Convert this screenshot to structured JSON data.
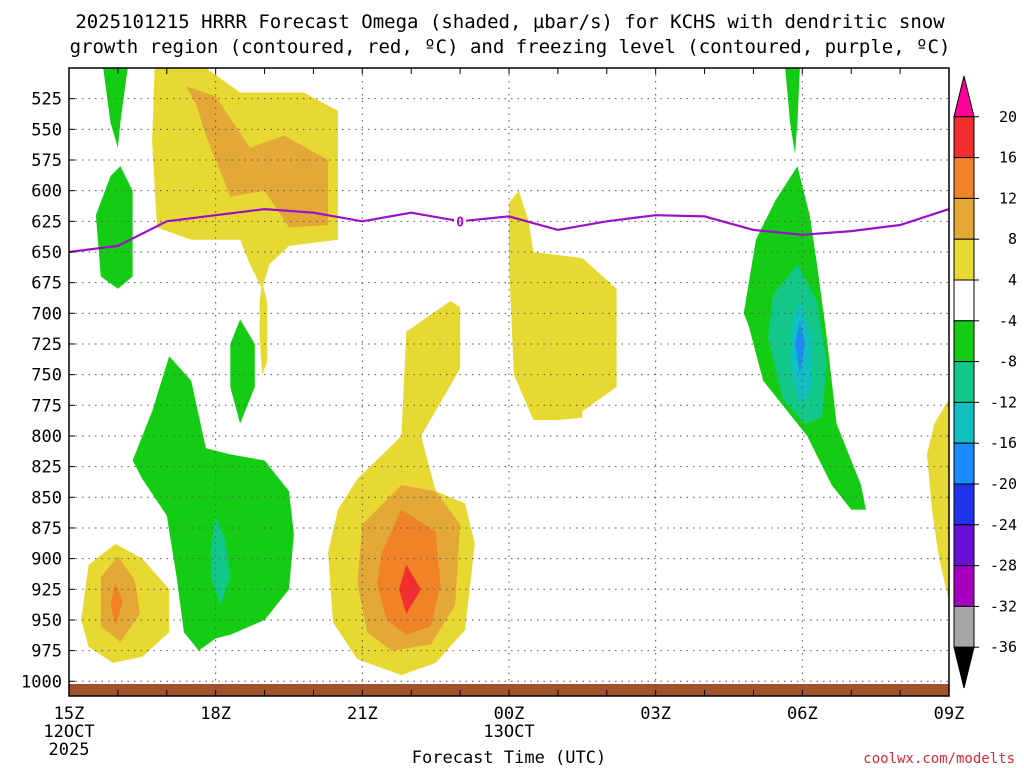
{
  "chart_data": {
    "type": "time-height contour",
    "title_line1": "2025101215 HRRR Forecast Omega (shaded, µbar/s) for KCHS with dendritic snow",
    "title_line2": "growth region (contoured, red, ºC) and freezing level (contoured, purple, ºC)",
    "xlabel": "Forecast Time (UTC)",
    "ylabel": "",
    "credit": "coolwx.com/modelts",
    "x_ticks": [
      {
        "hour": 0,
        "label": "15Z",
        "sub1": "12OCT",
        "sub2": "2025"
      },
      {
        "hour": 3,
        "label": "18Z",
        "sub1": "",
        "sub2": ""
      },
      {
        "hour": 6,
        "label": "21Z",
        "sub1": "",
        "sub2": ""
      },
      {
        "hour": 9,
        "label": "00Z",
        "sub1": "13OCT",
        "sub2": ""
      },
      {
        "hour": 12,
        "label": "03Z",
        "sub1": "",
        "sub2": ""
      },
      {
        "hour": 15,
        "label": "06Z",
        "sub1": "",
        "sub2": ""
      },
      {
        "hour": 18,
        "label": "09Z",
        "sub1": "",
        "sub2": ""
      }
    ],
    "xlim": [
      0,
      18
    ],
    "y_ticks": [
      525,
      550,
      575,
      600,
      625,
      650,
      675,
      700,
      725,
      750,
      775,
      800,
      825,
      850,
      875,
      900,
      925,
      950,
      975,
      1000
    ],
    "ylim_hpa": [
      500,
      1012
    ],
    "colorbar": {
      "labels": [
        "20",
        "16",
        "12",
        "8",
        "4",
        "-4",
        "-8",
        "-12",
        "-16",
        "-20",
        "-24",
        "-28",
        "-32",
        "-36"
      ],
      "bins": [
        {
          "color": "#ff0099",
          "label": ""
        },
        {
          "color": "#f22e2e",
          "label": "20"
        },
        {
          "color": "#f08228",
          "label": "16"
        },
        {
          "color": "#e3a836",
          "label": "12"
        },
        {
          "color": "#e8d932",
          "label": "8"
        },
        {
          "color": "#ffffff",
          "label": "4"
        },
        {
          "color": "#14cc14",
          "label": "-4"
        },
        {
          "color": "#12c888",
          "label": "-8"
        },
        {
          "color": "#10c0c0",
          "label": "-12"
        },
        {
          "color": "#1a8cff",
          "label": "-16"
        },
        {
          "color": "#2233ee",
          "label": "-20"
        },
        {
          "color": "#6a0fd6",
          "label": "-24"
        },
        {
          "color": "#a600c0",
          "label": "-28"
        },
        {
          "color": "#a6a6a6",
          "label": "-32"
        },
        {
          "color": "#000000",
          "label": "-36"
        }
      ]
    },
    "omega_colors": {
      "up1": "#e8d932",
      "up2": "#e3a836",
      "up3": "#f08228",
      "up4": "#f22e2e",
      "dn1": "#14cc14",
      "dn2": "#12c888",
      "dn3": "#10c0c0",
      "dn4": "#1a8cff"
    },
    "omega_regions": [
      {
        "level": "up1",
        "points": [
          [
            1.75,
            500
          ],
          [
            2.8,
            500
          ],
          [
            3.5,
            520
          ],
          [
            4.8,
            520
          ],
          [
            5.5,
            535
          ],
          [
            5.5,
            640
          ],
          [
            4.5,
            645
          ],
          [
            4.1,
            660
          ],
          [
            3.95,
            680
          ],
          [
            3.7,
            660
          ],
          [
            3.5,
            640
          ],
          [
            2.5,
            640
          ],
          [
            1.8,
            630
          ],
          [
            1.7,
            560
          ]
        ]
      },
      {
        "level": "up1",
        "points": [
          [
            3.95,
            675
          ],
          [
            4.05,
            690
          ],
          [
            4.05,
            740
          ],
          [
            3.95,
            750
          ],
          [
            3.9,
            720
          ],
          [
            3.9,
            690
          ]
        ]
      },
      {
        "level": "up2",
        "points": [
          [
            2.4,
            515
          ],
          [
            3.0,
            523
          ],
          [
            3.7,
            565
          ],
          [
            4.4,
            555
          ],
          [
            5.3,
            575
          ],
          [
            5.3,
            628
          ],
          [
            4.5,
            630
          ],
          [
            4.0,
            600
          ],
          [
            3.3,
            605
          ],
          [
            2.8,
            555
          ],
          [
            2.6,
            530
          ]
        ]
      },
      {
        "level": "up1",
        "points": [
          [
            5.9,
            835
          ],
          [
            6.8,
            800
          ],
          [
            6.9,
            715
          ],
          [
            7.8,
            690
          ],
          [
            8.0,
            695
          ],
          [
            8.0,
            745
          ],
          [
            7.2,
            800
          ],
          [
            7.5,
            845
          ],
          [
            8.1,
            855
          ],
          [
            8.3,
            888
          ],
          [
            8.1,
            958
          ],
          [
            7.5,
            985
          ],
          [
            6.8,
            995
          ],
          [
            5.9,
            982
          ],
          [
            5.4,
            952
          ],
          [
            5.3,
            895
          ],
          [
            5.5,
            860
          ]
        ]
      },
      {
        "level": "up2",
        "points": [
          [
            6.0,
            872
          ],
          [
            6.8,
            840
          ],
          [
            7.5,
            845
          ],
          [
            8.0,
            872
          ],
          [
            7.9,
            938
          ],
          [
            7.4,
            970
          ],
          [
            6.6,
            975
          ],
          [
            6.1,
            960
          ],
          [
            5.9,
            920
          ]
        ]
      },
      {
        "level": "up3",
        "points": [
          [
            6.4,
            895
          ],
          [
            6.8,
            860
          ],
          [
            7.5,
            878
          ],
          [
            7.6,
            922
          ],
          [
            7.4,
            955
          ],
          [
            6.9,
            962
          ],
          [
            6.5,
            950
          ],
          [
            6.3,
            920
          ]
        ]
      },
      {
        "level": "up4",
        "points": [
          [
            6.9,
            905
          ],
          [
            7.2,
            925
          ],
          [
            6.9,
            945
          ],
          [
            6.75,
            925
          ]
        ]
      },
      {
        "level": "up1",
        "points": [
          [
            9.0,
            610
          ],
          [
            9.2,
            600
          ],
          [
            9.4,
            625
          ],
          [
            9.5,
            650
          ],
          [
            10.5,
            655
          ],
          [
            11.2,
            680
          ],
          [
            11.2,
            760
          ],
          [
            10.5,
            780
          ],
          [
            10.5,
            785
          ],
          [
            10.0,
            787
          ],
          [
            9.5,
            787
          ],
          [
            9.1,
            750
          ],
          [
            9.0,
            660
          ]
        ]
      },
      {
        "level": "up1",
        "points": [
          [
            18.0,
            770
          ],
          [
            18.0,
            935
          ],
          [
            17.8,
            900
          ],
          [
            17.65,
            860
          ],
          [
            17.55,
            815
          ],
          [
            17.7,
            790
          ]
        ]
      },
      {
        "level": "up1",
        "points": [
          [
            0.4,
            905
          ],
          [
            0.95,
            888
          ],
          [
            1.5,
            900
          ],
          [
            2.05,
            925
          ],
          [
            2.05,
            960
          ],
          [
            1.5,
            980
          ],
          [
            0.9,
            985
          ],
          [
            0.4,
            972
          ],
          [
            0.25,
            950
          ]
        ]
      },
      {
        "level": "up2",
        "points": [
          [
            0.65,
            915
          ],
          [
            1.0,
            898
          ],
          [
            1.35,
            918
          ],
          [
            1.45,
            945
          ],
          [
            1.05,
            968
          ],
          [
            0.65,
            955
          ]
        ]
      },
      {
        "level": "up3",
        "points": [
          [
            0.95,
            920
          ],
          [
            1.1,
            935
          ],
          [
            0.95,
            955
          ],
          [
            0.85,
            938
          ]
        ]
      },
      {
        "level": "dn1",
        "points": [
          [
            0.7,
            500
          ],
          [
            1.2,
            500
          ],
          [
            1.05,
            545
          ],
          [
            1.0,
            565
          ],
          [
            0.85,
            545
          ]
        ]
      },
      {
        "level": "dn1",
        "points": [
          [
            1.05,
            580
          ],
          [
            1.3,
            600
          ],
          [
            1.3,
            670
          ],
          [
            1.0,
            680
          ],
          [
            0.65,
            670
          ],
          [
            0.55,
            620
          ],
          [
            0.85,
            588
          ]
        ]
      },
      {
        "level": "dn1",
        "points": [
          [
            3.5,
            705
          ],
          [
            3.8,
            725
          ],
          [
            3.8,
            760
          ],
          [
            3.5,
            790
          ],
          [
            3.3,
            760
          ],
          [
            3.3,
            725
          ]
        ]
      },
      {
        "level": "dn1",
        "points": [
          [
            2.05,
            735
          ],
          [
            2.5,
            755
          ],
          [
            2.8,
            810
          ],
          [
            3.3,
            815
          ],
          [
            4.0,
            820
          ],
          [
            4.5,
            845
          ],
          [
            4.6,
            880
          ],
          [
            4.5,
            925
          ],
          [
            4.0,
            950
          ],
          [
            3.3,
            962
          ],
          [
            3.0,
            965
          ],
          [
            2.65,
            975
          ],
          [
            2.35,
            960
          ],
          [
            2.2,
            915
          ],
          [
            2.0,
            865
          ],
          [
            1.5,
            835
          ],
          [
            1.3,
            820
          ],
          [
            1.7,
            780
          ]
        ]
      },
      {
        "level": "dn2",
        "points": [
          [
            3.0,
            865
          ],
          [
            3.2,
            885
          ],
          [
            3.3,
            915
          ],
          [
            3.1,
            938
          ],
          [
            2.9,
            915
          ],
          [
            2.9,
            890
          ]
        ]
      },
      {
        "level": "dn1",
        "points": [
          [
            14.65,
            500
          ],
          [
            14.95,
            500
          ],
          [
            14.9,
            545
          ],
          [
            14.85,
            570
          ],
          [
            14.75,
            545
          ]
        ]
      },
      {
        "level": "dn1",
        "points": [
          [
            14.9,
            580
          ],
          [
            15.15,
            620
          ],
          [
            15.3,
            660
          ],
          [
            15.5,
            720
          ],
          [
            15.7,
            790
          ],
          [
            16.2,
            840
          ],
          [
            16.3,
            860
          ],
          [
            16.0,
            860
          ],
          [
            15.6,
            840
          ],
          [
            15.1,
            800
          ],
          [
            14.2,
            755
          ],
          [
            13.9,
            710
          ],
          [
            13.8,
            700
          ],
          [
            14.05,
            640
          ],
          [
            14.45,
            608
          ]
        ]
      },
      {
        "level": "dn2",
        "points": [
          [
            14.9,
            660
          ],
          [
            15.3,
            690
          ],
          [
            15.5,
            740
          ],
          [
            15.4,
            785
          ],
          [
            15.05,
            790
          ],
          [
            14.6,
            770
          ],
          [
            14.3,
            720
          ],
          [
            14.4,
            685
          ]
        ]
      },
      {
        "level": "dn3",
        "points": [
          [
            14.95,
            690
          ],
          [
            15.2,
            720
          ],
          [
            15.2,
            760
          ],
          [
            14.95,
            775
          ],
          [
            14.75,
            740
          ],
          [
            14.8,
            705
          ]
        ]
      },
      {
        "level": "dn4",
        "points": [
          [
            14.95,
            705
          ],
          [
            15.05,
            725
          ],
          [
            14.95,
            750
          ],
          [
            14.85,
            725
          ]
        ]
      }
    ],
    "freezing_level": {
      "label": "0",
      "label_hour": 8.0,
      "color": "#9b10c8",
      "points": [
        [
          0,
          650
        ],
        [
          1.0,
          645
        ],
        [
          2.0,
          625
        ],
        [
          3.0,
          620
        ],
        [
          4.0,
          615
        ],
        [
          5.0,
          618
        ],
        [
          6.0,
          625
        ],
        [
          7.0,
          618
        ],
        [
          8.0,
          625
        ],
        [
          9.0,
          621
        ],
        [
          10.0,
          632
        ],
        [
          11.0,
          625
        ],
        [
          12.0,
          620
        ],
        [
          13.0,
          621
        ],
        [
          14.0,
          632
        ],
        [
          15.0,
          636
        ],
        [
          16.0,
          633
        ],
        [
          17.0,
          628
        ],
        [
          18.0,
          615
        ]
      ]
    },
    "terrain_color": "#a0522d",
    "grid": true
  }
}
